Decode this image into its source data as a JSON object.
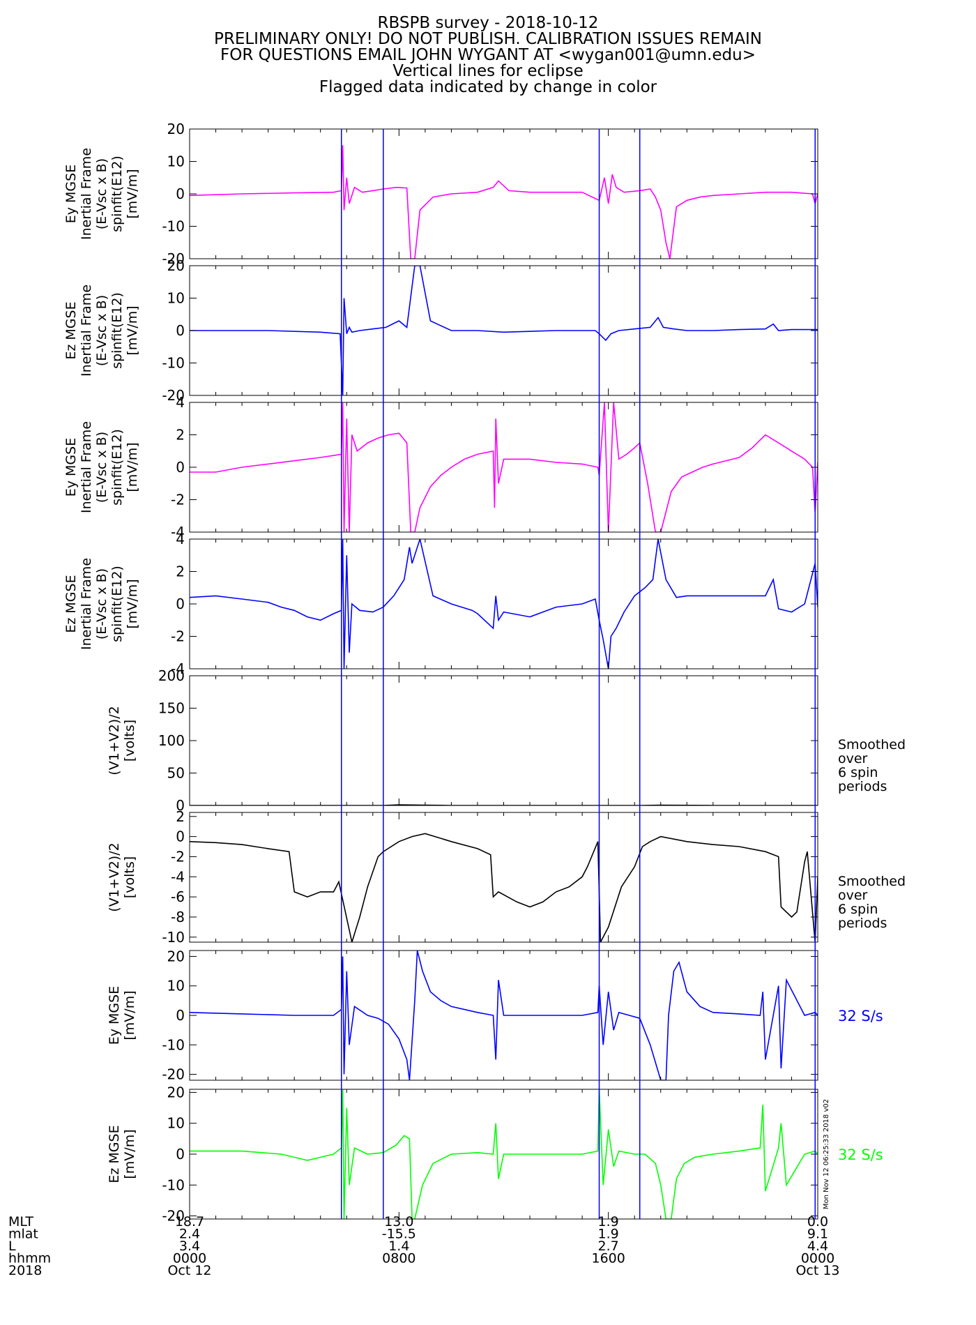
{
  "header": {
    "lines": [
      "RBSPB survey - 2018-10-12",
      "PRELIMINARY ONLY! DO NOT PUBLISH. CALIBRATION ISSUES REMAIN",
      "FOR QUESTIONS EMAIL JOHN WYGANT AT <wygan001@umn.edu>",
      "Vertical lines for eclipse",
      "Flagged data indicated by change in color"
    ]
  },
  "colors": {
    "magenta": "#ff00ff",
    "blue": "#0000ff",
    "black": "#000000",
    "green": "#00ff00"
  },
  "side_stamp": "Mon Nov 12 06:25:33 2018 v02",
  "chart_data": {
    "type": "line",
    "x_unit": "hours since 2018-10-12 00:00 UT",
    "xlim": [
      0,
      24
    ],
    "eclipse_lines_hours": [
      5.8,
      7.4,
      15.65,
      17.2,
      23.9
    ],
    "x_ticks": {
      "hours": [
        0,
        8,
        16,
        24
      ],
      "row_labels": [
        "MLT",
        "mlat",
        "L",
        "hhmm",
        "2018"
      ],
      "columns": [
        [
          "18.7",
          "2.4",
          "3.4",
          "0000",
          "Oct 12"
        ],
        [
          "13.0",
          "-15.5",
          "1.4",
          "0800",
          ""
        ],
        [
          "1.9",
          "1.9",
          "2.7",
          "1600",
          ""
        ],
        [
          "0.0",
          "9.1",
          "4.4",
          "0000",
          "Oct 13"
        ]
      ]
    },
    "panels": [
      {
        "ylabel": [
          "Ey MGSE",
          "Inertial Frame",
          "(E-Vsc x B)",
          "spinfit(E12)",
          "[mV/m]"
        ],
        "ylim": [
          -20,
          20
        ],
        "yticks": [
          -20,
          -10,
          0,
          10,
          20
        ],
        "ytick_labels": [
          "-20",
          "-10",
          "0",
          "10",
          "20"
        ],
        "color": "#ff00ff",
        "side_note": [],
        "series": {
          "name": "",
          "x": [
            0,
            2,
            4,
            5.5,
            5.8,
            5.85,
            5.9,
            6.0,
            6.1,
            6.3,
            6.6,
            7.0,
            7.4,
            7.9,
            8.3,
            8.45,
            8.6,
            8.8,
            9.3,
            10,
            11,
            11.6,
            11.8,
            12.2,
            13,
            14,
            15,
            15.65,
            15.85,
            16.0,
            16.15,
            16.3,
            16.6,
            17.2,
            17.6,
            17.8,
            18.0,
            18.2,
            18.35,
            18.6,
            19.0,
            19.5,
            20,
            21,
            22,
            23,
            23.8,
            23.9,
            24
          ],
          "y": [
            -0.5,
            0,
            0.3,
            0.5,
            1,
            15,
            -5,
            5,
            -3,
            2,
            0.5,
            1,
            1.5,
            2,
            1.8,
            -20,
            -20,
            -5,
            -1,
            0,
            0.5,
            2,
            4,
            1,
            0.5,
            0.5,
            0.5,
            -2,
            5,
            -3,
            6,
            2,
            0.5,
            1,
            1.5,
            -1,
            -5,
            -15,
            -20,
            -4,
            -2,
            -1,
            -0.5,
            0,
            0.5,
            0.5,
            0,
            -3,
            0
          ]
        }
      },
      {
        "ylabel": [
          "Ez MGSE",
          "Inertial Frame",
          "(E-Vsc x B)",
          "spinfit(E12)",
          "[mV/m]"
        ],
        "ylim": [
          -20,
          20
        ],
        "yticks": [
          -20,
          -10,
          0,
          10,
          20
        ],
        "ytick_labels": [
          "-20",
          "-10",
          "0",
          "10",
          "20"
        ],
        "color": "#0000ff",
        "side_note": [],
        "series": {
          "name": "",
          "x": [
            0,
            3,
            5,
            5.75,
            5.85,
            5.9,
            6.0,
            6.1,
            6.2,
            6.5,
            7.0,
            7.5,
            8.0,
            8.3,
            8.6,
            8.8,
            9.2,
            10,
            11,
            12,
            14,
            15.5,
            15.65,
            15.9,
            16.1,
            16.4,
            17,
            17.6,
            17.9,
            18.1,
            18.5,
            19,
            20,
            21,
            22,
            22.3,
            22.5,
            23,
            24
          ],
          "y": [
            0,
            0,
            -0.5,
            -1,
            -20,
            10,
            -1,
            1,
            -0.5,
            0,
            0.5,
            1,
            3,
            1,
            20,
            20,
            3,
            0,
            0,
            -0.5,
            0,
            0,
            -1,
            -3,
            -1,
            0,
            0.5,
            1,
            4,
            1,
            0.5,
            0,
            0,
            0.3,
            0.5,
            2,
            0,
            0.3,
            0.3
          ]
        }
      },
      {
        "ylabel": [
          "Ey MGSE",
          "Inertial Frame",
          "(E-Vsc x B)",
          "spinfit(E12)",
          "[mV/m]"
        ],
        "ylim": [
          -4,
          4
        ],
        "yticks": [
          -4,
          -2,
          0,
          2,
          4
        ],
        "ytick_labels": [
          "-4",
          "-2",
          "0",
          "2",
          "4"
        ],
        "color": "#ff00ff",
        "side_note": [],
        "series": {
          "name": "",
          "x": [
            0,
            1,
            2,
            3,
            4,
            5,
            5.8,
            5.85,
            5.9,
            6.0,
            6.1,
            6.2,
            6.4,
            6.8,
            7.2,
            7.6,
            8.0,
            8.3,
            8.45,
            8.6,
            8.8,
            9.2,
            9.6,
            10,
            10.5,
            11,
            11.6,
            11.65,
            11.7,
            11.8,
            12,
            13,
            14,
            15,
            15.6,
            15.65,
            15.85,
            16.0,
            16.2,
            16.4,
            16.7,
            17.0,
            17.2,
            17.5,
            17.8,
            18.0,
            18.4,
            18.8,
            19.2,
            19.6,
            20,
            21,
            21.5,
            22,
            22.5,
            23,
            23.5,
            23.8,
            23.9,
            24
          ],
          "y": [
            -0.3,
            -0.3,
            0,
            0.2,
            0.4,
            0.6,
            0.8,
            4,
            -4,
            3,
            -4,
            2,
            1,
            1.5,
            1.8,
            2,
            2.1,
            1.5,
            -4,
            -4,
            -2.5,
            -1.2,
            -0.5,
            0,
            0.5,
            0.8,
            1,
            -2.5,
            3,
            -1,
            0.5,
            0.5,
            0.3,
            0.2,
            0,
            -0.5,
            4,
            -4,
            4,
            0.5,
            0.8,
            1.2,
            1.5,
            -1,
            -4,
            -4,
            -1.5,
            -0.6,
            -0.3,
            0,
            0.2,
            0.6,
            1.2,
            2,
            1.5,
            1,
            0.5,
            0,
            -2.8,
            0.3
          ]
        }
      },
      {
        "ylabel": [
          "Ez MGSE",
          "Inertial Frame",
          "(E-Vsc x B)",
          "spinfit(E12)",
          "[mV/m]"
        ],
        "ylim": [
          -4,
          4
        ],
        "yticks": [
          -4,
          -2,
          0,
          2,
          4
        ],
        "ytick_labels": [
          "-4",
          "-2",
          "0",
          "2",
          "4"
        ],
        "color": "#0000ff",
        "side_note": [],
        "series": {
          "name": "",
          "x": [
            0,
            1,
            2,
            3,
            3.5,
            4,
            4.5,
            5,
            5.5,
            5.8,
            5.85,
            5.9,
            6.0,
            6.1,
            6.2,
            6.5,
            7.0,
            7.4,
            7.8,
            8.0,
            8.2,
            8.4,
            8.5,
            8.8,
            9.3,
            10,
            10.8,
            11.0,
            11.6,
            11.7,
            11.8,
            12,
            13,
            14,
            15,
            15.5,
            15.65,
            15.8,
            16.0,
            16.1,
            16.3,
            16.6,
            17.0,
            17.4,
            17.7,
            17.9,
            18.2,
            18.6,
            19,
            20,
            21,
            22,
            22.3,
            22.5,
            23,
            23.5,
            23.9,
            24
          ],
          "y": [
            0.4,
            0.5,
            0.3,
            0.1,
            -0.2,
            -0.4,
            -0.8,
            -1,
            -0.6,
            -0.4,
            4,
            -4,
            3,
            -3,
            0,
            -0.4,
            -0.5,
            -0.2,
            0.5,
            1,
            1.5,
            3.5,
            2.5,
            4,
            0.5,
            0,
            -0.4,
            -0.6,
            -1.5,
            0.5,
            -1,
            -0.5,
            -0.8,
            -0.2,
            0,
            0.3,
            -1,
            -2.2,
            -4,
            -2,
            -1.5,
            -0.5,
            0.5,
            1,
            1.5,
            4,
            1.5,
            0.4,
            0.5,
            0.5,
            0.5,
            0.5,
            1.5,
            -0.3,
            -0.5,
            0,
            2.5,
            -0.2
          ]
        }
      },
      {
        "ylabel": [
          "(V1+V2)/2",
          "[volts]"
        ],
        "ylim": [
          0,
          200
        ],
        "yticks": [
          0,
          50,
          100,
          150,
          200
        ],
        "ytick_labels": [
          "0",
          "50",
          "100",
          "150",
          "200"
        ],
        "color": "#000000",
        "side_note": [
          "Smoothed",
          "over",
          "6 spin",
          "periods"
        ],
        "series": {
          "name": "",
          "x": [
            0,
            2,
            4,
            5.5,
            5.8,
            6.5,
            7.4,
            8.0,
            9.0,
            10,
            11.5,
            12.5,
            14,
            15.6,
            15.7,
            16.5,
            17.2,
            18,
            20,
            22,
            23.5,
            23.9,
            24
          ],
          "y": [
            0,
            -1,
            -3,
            -5,
            -6,
            -8,
            -1,
            1,
            0.5,
            -1,
            -2,
            -5,
            -5,
            -3,
            -8,
            -10,
            -1,
            0.5,
            -0.5,
            -2,
            -1,
            -9,
            -4
          ]
        }
      },
      {
        "ylabel": [
          "(V1+V2)/2",
          "[volts]"
        ],
        "ylim": [
          -10.5,
          2.4
        ],
        "yticks": [
          -10,
          -8,
          -6,
          -4,
          -2,
          0,
          2
        ],
        "ytick_labels": [
          "-10",
          "-8",
          "-6",
          "-4",
          "-2",
          "0",
          "2"
        ],
        "color": "#000000",
        "side_note": [
          "Smoothed",
          "over",
          "6 spin",
          "periods"
        ],
        "series": {
          "name": "",
          "x": [
            0,
            1,
            2,
            3,
            3.8,
            3.9,
            4.0,
            4.5,
            5.0,
            5.5,
            5.7,
            6.2,
            6.5,
            6.8,
            7.2,
            7.4,
            8.0,
            8.5,
            9.0,
            10,
            11,
            11.5,
            11.6,
            11.8,
            12.5,
            13,
            13.5,
            14,
            14.5,
            15.0,
            15.2,
            15.6,
            15.7,
            16.0,
            16.5,
            17.0,
            17.3,
            17.6,
            18,
            19,
            20,
            21,
            22,
            22.5,
            22.6,
            23.0,
            23.2,
            23.5,
            23.6,
            23.9,
            24
          ],
          "y": [
            -0.5,
            -0.6,
            -0.8,
            -1.2,
            -1.5,
            -3.5,
            -5.5,
            -6,
            -5.5,
            -5.5,
            -4.5,
            -10.5,
            -8,
            -5,
            -2,
            -1.5,
            -0.5,
            0,
            0.3,
            -0.5,
            -1.2,
            -1.8,
            -6,
            -5.5,
            -6.5,
            -7,
            -6.5,
            -5.5,
            -5,
            -4,
            -3,
            -0.5,
            -10.5,
            -9,
            -5,
            -3,
            -1,
            -0.5,
            0,
            -0.5,
            -0.8,
            -1,
            -1.5,
            -2,
            -7,
            -8,
            -7.5,
            -2.5,
            -1.5,
            -10.5,
            -4
          ]
        }
      },
      {
        "ylabel": [
          "Ey MGSE",
          "[mV/m]"
        ],
        "ylim": [
          -22,
          22
        ],
        "yticks": [
          -20,
          -10,
          0,
          10,
          20
        ],
        "ytick_labels": [
          "-20",
          "-10",
          "0",
          "10",
          "20"
        ],
        "color": "#0000ff",
        "side_note": [
          "32 S/s"
        ],
        "series": {
          "name": "",
          "x": [
            0,
            2,
            4,
            5.5,
            5.8,
            5.85,
            5.9,
            6.0,
            6.1,
            6.3,
            6.8,
            7.2,
            7.6,
            8.0,
            8.3,
            8.4,
            8.6,
            8.7,
            8.9,
            9.2,
            9.6,
            10,
            11,
            11.6,
            11.7,
            11.8,
            12,
            13,
            14,
            15,
            15.6,
            15.65,
            15.8,
            16.0,
            16.2,
            16.4,
            16.8,
            17.2,
            17.6,
            18.0,
            18.2,
            18.3,
            18.5,
            18.7,
            19.0,
            19.5,
            20,
            21,
            21.8,
            21.9,
            22.0,
            22.5,
            22.6,
            22.8,
            23.5,
            23.9,
            24
          ],
          "y": [
            1,
            0.5,
            0,
            0,
            2,
            20,
            -20,
            15,
            -10,
            3,
            0,
            -1,
            -3,
            -8,
            -15,
            -22,
            5,
            22,
            15,
            8,
            5,
            3,
            1,
            0,
            -15,
            12,
            0,
            0,
            0,
            0,
            1,
            10,
            -10,
            8,
            -5,
            1,
            0,
            -1,
            -10,
            -22,
            -22,
            0,
            15,
            18,
            8,
            3,
            1,
            0.5,
            0,
            8,
            -15,
            10,
            -18,
            12,
            0,
            1,
            0
          ]
        }
      },
      {
        "ylabel": [
          "Ez MGSE",
          "[mV/m]"
        ],
        "ylim": [
          -21,
          21
        ],
        "yticks": [
          -20,
          -10,
          0,
          10,
          20
        ],
        "ytick_labels": [
          "-20",
          "-10",
          "0",
          "10",
          "20"
        ],
        "color": "#00ff00",
        "side_note": [
          "32 S/s"
        ],
        "series": {
          "name": "",
          "x": [
            0,
            2,
            3.5,
            4.5,
            5.5,
            5.8,
            5.85,
            5.9,
            6.0,
            6.1,
            6.3,
            6.8,
            7.4,
            7.9,
            8.2,
            8.4,
            8.5,
            8.6,
            8.9,
            9.3,
            10,
            11,
            11.6,
            11.7,
            11.8,
            12,
            13,
            14,
            15,
            15.6,
            15.65,
            15.8,
            16.0,
            16.2,
            16.4,
            17.0,
            17.4,
            17.8,
            18.0,
            18.2,
            18.4,
            18.6,
            18.9,
            19.3,
            20,
            21,
            21.8,
            21.9,
            22.0,
            22.5,
            22.6,
            22.8,
            23.5,
            23.9,
            24
          ],
          "y": [
            1,
            1,
            0,
            -2,
            0,
            2,
            21,
            -21,
            15,
            -10,
            2,
            0,
            0.5,
            3,
            6,
            5,
            -21,
            -21,
            -10,
            -3,
            0,
            0.5,
            0,
            10,
            -8,
            0,
            0,
            0,
            0,
            1,
            21,
            -10,
            8,
            -4,
            1,
            0,
            0,
            -3,
            -10,
            -21,
            -21,
            -8,
            -3,
            -1,
            0,
            1,
            2,
            16,
            -12,
            2,
            10,
            -10,
            0,
            1,
            0
          ]
        }
      }
    ]
  }
}
